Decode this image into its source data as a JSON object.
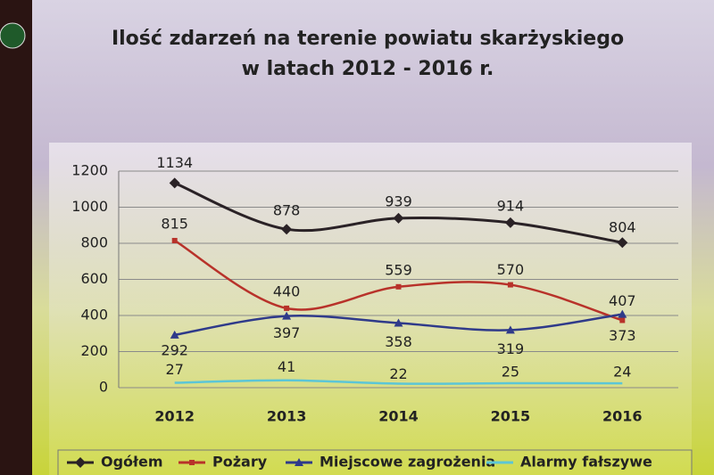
{
  "chart_data": {
    "type": "line",
    "title": [
      "Ilość zdarzeń na terenie powiatu skarżyskiego",
      "w latach 2012 - 2016 r."
    ],
    "categories": [
      "2012",
      "2013",
      "2014",
      "2015",
      "2016"
    ],
    "series": [
      {
        "name": "Ogółem",
        "color": "#2a2226",
        "marker": "diamond",
        "values": [
          1134,
          878,
          939,
          914,
          804
        ]
      },
      {
        "name": "Pożary",
        "color": "#b8322a",
        "marker": "square",
        "values": [
          815,
          440,
          559,
          570,
          373
        ]
      },
      {
        "name": "Miejscowe zagrożenia",
        "color": "#2f3a8a",
        "marker": "triangle",
        "values": [
          292,
          397,
          358,
          319,
          407
        ]
      },
      {
        "name": "Alarmy fałszywe",
        "color": "#5cc6d6",
        "marker": "none",
        "values": [
          27,
          41,
          22,
          25,
          24
        ]
      }
    ],
    "ylim": [
      0,
      1200
    ],
    "yticks": [
      0,
      200,
      400,
      600,
      800,
      1000,
      1200
    ],
    "grid": true,
    "legend": "bottom"
  }
}
